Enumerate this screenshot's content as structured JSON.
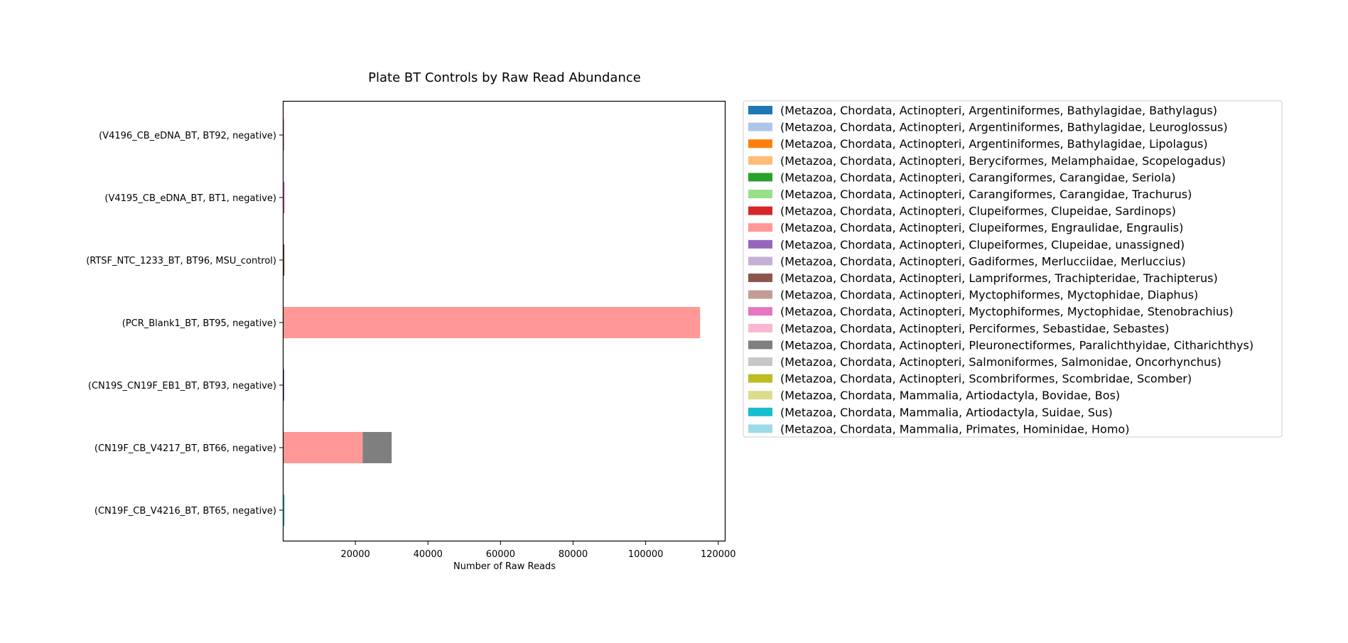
{
  "chart_data": {
    "type": "bar",
    "orientation": "horizontal",
    "stacked": true,
    "title": "Plate BT Controls by Raw Read Abundance",
    "xlabel": "Number of Raw Reads",
    "ylabel": "",
    "xlim": [
      0,
      122000
    ],
    "xticks": [
      20000,
      40000,
      60000,
      80000,
      100000,
      120000
    ],
    "grid": false,
    "legend_position": "outside-right",
    "categories": [
      "(CN19F_CB_V4216_BT, BT65, negative)",
      "(CN19F_CB_V4217_BT, BT66, negative)",
      "(CN19S_CN19F_EB1_BT, BT93, negative)",
      "(PCR_Blank1_BT, BT95, negative)",
      "(RTSF_NTC_1233_BT, BT96, MSU_control)",
      "(V4195_CB_eDNA_BT, BT1, negative)",
      "(V4196_CB_eDNA_BT, BT92, negative)"
    ],
    "series": [
      {
        "name": "(Metazoa, Chordata, Actinopteri, Argentiniformes, Bathylagidae, Bathylagus)",
        "color": "#1f77b4",
        "values": [
          0,
          0,
          0,
          0,
          0,
          0,
          0
        ]
      },
      {
        "name": "(Metazoa, Chordata, Actinopteri, Argentiniformes, Bathylagidae, Leuroglossus)",
        "color": "#aec7e8",
        "values": [
          0,
          0,
          0,
          0,
          0,
          0,
          0
        ]
      },
      {
        "name": "(Metazoa, Chordata, Actinopteri, Argentiniformes, Bathylagidae, Lipolagus)",
        "color": "#ff7f0e",
        "values": [
          0,
          0,
          0,
          0,
          0,
          0,
          0
        ]
      },
      {
        "name": "(Metazoa, Chordata, Actinopteri, Beryciformes, Melamphaidae, Scopelogadus)",
        "color": "#ffbb78",
        "values": [
          0,
          0,
          0,
          0,
          0,
          0,
          0
        ]
      },
      {
        "name": "(Metazoa, Chordata, Actinopteri, Carangiformes, Carangidae, Seriola)",
        "color": "#2ca02c",
        "values": [
          0,
          0,
          0,
          0,
          0,
          0,
          0
        ]
      },
      {
        "name": "(Metazoa, Chordata, Actinopteri, Carangiformes, Carangidae, Trachurus)",
        "color": "#98df8a",
        "values": [
          0,
          0,
          0,
          0,
          0,
          0,
          0
        ]
      },
      {
        "name": "(Metazoa, Chordata, Actinopteri, Clupeiformes, Clupeidae, Sardinops)",
        "color": "#d62728",
        "values": [
          0,
          0,
          0,
          0,
          0,
          0,
          200
        ]
      },
      {
        "name": "(Metazoa, Chordata, Actinopteri, Clupeiformes, Engraulidae, Engraulis)",
        "color": "#ff9896",
        "values": [
          0,
          22000,
          100,
          115000,
          150,
          200,
          0
        ]
      },
      {
        "name": "(Metazoa, Chordata, Actinopteri, Clupeiformes, Clupeidae, unassigned)",
        "color": "#9467bd",
        "values": [
          0,
          0,
          150,
          0,
          0,
          0,
          0
        ]
      },
      {
        "name": "(Metazoa, Chordata, Actinopteri, Gadiformes, Merlucciidae, Merluccius)",
        "color": "#c5b0d5",
        "values": [
          0,
          0,
          0,
          0,
          0,
          0,
          0
        ]
      },
      {
        "name": "(Metazoa, Chordata, Actinopteri, Lampriformes, Trachipteridae, Trachipterus)",
        "color": "#8c564b",
        "values": [
          0,
          0,
          0,
          0,
          100,
          0,
          0
        ]
      },
      {
        "name": "(Metazoa, Chordata, Actinopteri, Myctophiformes, Myctophidae, Diaphus)",
        "color": "#c49c94",
        "values": [
          0,
          0,
          0,
          0,
          0,
          0,
          0
        ]
      },
      {
        "name": "(Metazoa, Chordata, Actinopteri, Myctophiformes, Myctophidae, Stenobrachius)",
        "color": "#e377c2",
        "values": [
          0,
          0,
          0,
          0,
          0,
          250,
          0
        ]
      },
      {
        "name": "(Metazoa, Chordata, Actinopteri, Perciformes, Sebastidae, Sebastes)",
        "color": "#f7b6d2",
        "values": [
          0,
          0,
          0,
          0,
          0,
          0,
          0
        ]
      },
      {
        "name": "(Metazoa, Chordata, Actinopteri, Pleuronectiformes, Paralichthyidae, Citharichthys)",
        "color": "#7f7f7f",
        "values": [
          0,
          8000,
          0,
          0,
          0,
          0,
          0
        ]
      },
      {
        "name": "(Metazoa, Chordata, Actinopteri, Salmoniformes, Salmonidae, Oncorhynchus)",
        "color": "#c7c7c7",
        "values": [
          0,
          0,
          0,
          0,
          0,
          0,
          0
        ]
      },
      {
        "name": "(Metazoa, Chordata, Actinopteri, Scombriformes, Scombridae, Scomber)",
        "color": "#bcbd22",
        "values": [
          0,
          0,
          0,
          0,
          0,
          0,
          0
        ]
      },
      {
        "name": "(Metazoa, Chordata, Mammalia, Artiodactyla, Bovidae, Bos)",
        "color": "#dbdb8d",
        "values": [
          0,
          0,
          0,
          0,
          0,
          0,
          0
        ]
      },
      {
        "name": "(Metazoa, Chordata, Mammalia, Artiodactyla, Suidae, Sus)",
        "color": "#17becf",
        "values": [
          300,
          0,
          0,
          0,
          0,
          0,
          0
        ]
      },
      {
        "name": "(Metazoa, Chordata, Mammalia, Primates, Hominidae, Homo)",
        "color": "#9edae5",
        "values": [
          250,
          0,
          0,
          0,
          0,
          0,
          0
        ]
      }
    ]
  }
}
